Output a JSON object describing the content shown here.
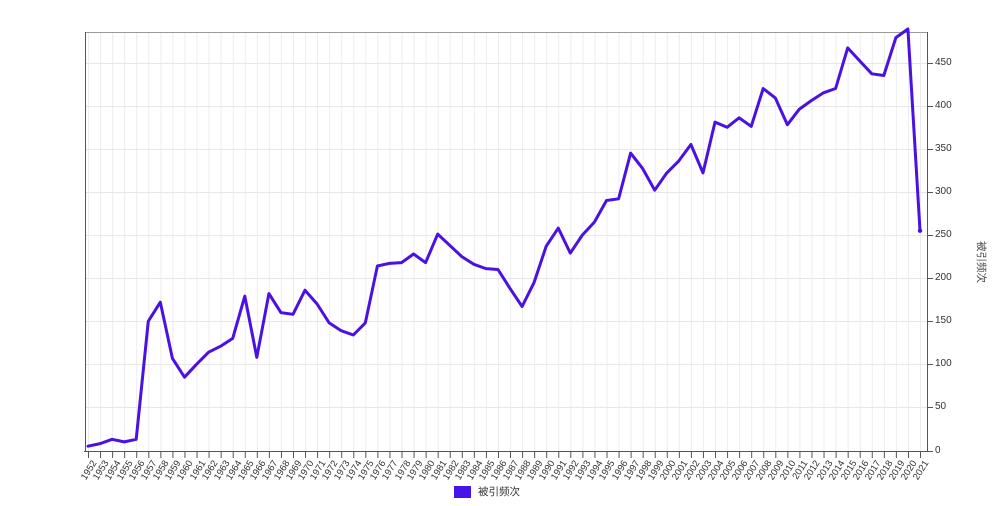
{
  "chart_data": {
    "type": "line",
    "title": "",
    "xlabel": "",
    "ylabel": "被引频次",
    "x": [
      1952,
      1953,
      1954,
      1955,
      1956,
      1957,
      1958,
      1959,
      1960,
      1961,
      1962,
      1963,
      1964,
      1965,
      1966,
      1967,
      1968,
      1969,
      1970,
      1971,
      1972,
      1973,
      1974,
      1975,
      1976,
      1977,
      1978,
      1979,
      1980,
      1981,
      1982,
      1983,
      1984,
      1985,
      1986,
      1987,
      1988,
      1989,
      1990,
      1991,
      1992,
      1993,
      1994,
      1995,
      1996,
      1997,
      1998,
      1999,
      2000,
      2001,
      2002,
      2003,
      2004,
      2005,
      2006,
      2007,
      2008,
      2009,
      2010,
      2011,
      2012,
      2013,
      2014,
      2015,
      2016,
      2017,
      2018,
      2019,
      2020,
      2021
    ],
    "series": [
      {
        "name": "被引频次",
        "values": [
          5,
          8,
          13,
          10,
          13,
          150,
          172,
          107,
          85,
          100,
          114,
          121,
          130,
          179,
          108,
          182,
          160,
          158,
          186,
          170,
          148,
          139,
          134,
          148,
          214,
          217,
          218,
          228,
          218,
          251,
          238,
          225,
          216,
          211,
          210,
          188,
          167,
          195,
          237,
          258,
          229,
          250,
          265,
          290,
          292,
          345,
          327,
          302,
          322,
          336,
          355,
          322,
          381,
          375,
          386,
          376,
          420,
          409,
          378,
          396,
          406,
          415,
          420,
          467,
          452,
          437,
          435,
          479,
          489,
          255
        ]
      }
    ],
    "ylim": [
      0,
      490
    ],
    "yticks": [
      0,
      50,
      100,
      150,
      200,
      250,
      300,
      350,
      400,
      450
    ],
    "grid": true,
    "legend_position": "bottom",
    "line_color": "#4b10e2",
    "legend_swatch_color": "#4713e8"
  },
  "legend": {
    "label": "被引频次"
  },
  "y_axis": {
    "title": "被引频次"
  }
}
